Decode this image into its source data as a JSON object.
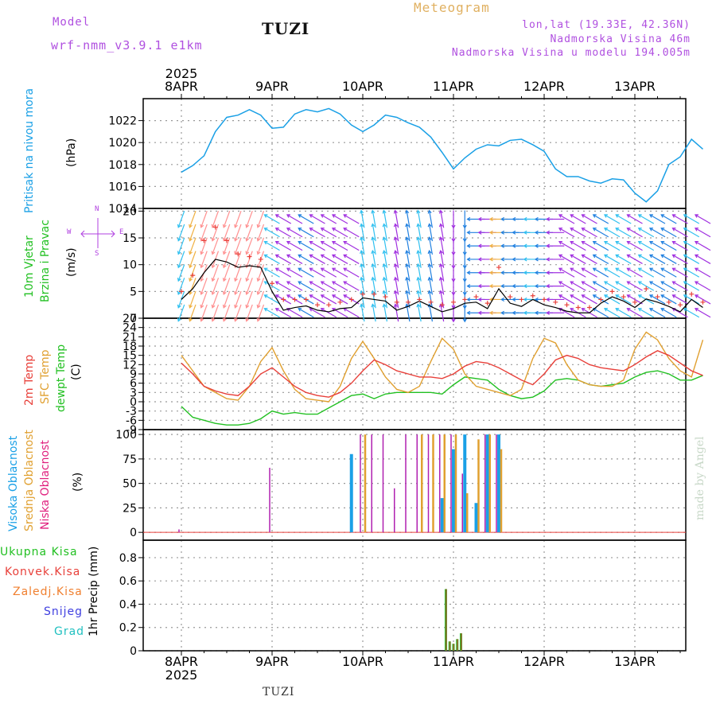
{
  "header": {
    "model_label": "Model",
    "model_name": "wrf-nmm_v3.9.1 e1km",
    "station": "TUZI",
    "product": "Meteogram",
    "coords": "lon,lat (19.33E, 42.36N)",
    "altitude": "Nadmorska Visina 46m",
    "model_altitude": "Nadmorska Visina u modelu 194.005m"
  },
  "colors": {
    "pressure": "#1aa0e6",
    "temp2m": "#e8403a",
    "sfc": "#e0a030",
    "dew": "#22c022",
    "high": "#1aa0e6",
    "mid": "#e0a030",
    "low": "#b020b0",
    "precip_total": "#22c022",
    "precip_conv": "#e8403a",
    "precip_frz": "#f08030",
    "snow": "#4040e0",
    "grad": "#20c0c0",
    "wind_label": "#22c022",
    "wind_rose": "#b040e0"
  },
  "time_axis": {
    "year": "2025",
    "days": [
      "8APR",
      "9APR",
      "10APR",
      "11APR",
      "12APR",
      "13APR"
    ]
  },
  "panels": {
    "pressure": {
      "label": "Pritisak na nivou mora",
      "unit": "(hPa)",
      "ticks": [
        "1014",
        "1016",
        "1018",
        "1020",
        "1022"
      ]
    },
    "wind": {
      "label1": "10m Vjetar",
      "label2": "Brzina i Pravac",
      "unit": "(m/s)",
      "ticks": [
        "0",
        "5",
        "10",
        "15",
        "20"
      ],
      "rose_n": "N",
      "rose_w": "W",
      "rose_e": "E",
      "rose_s": "S"
    },
    "temp": {
      "label1": "2m Temp",
      "label2": "SFC Temp",
      "label3": "dewpt Temp",
      "unit": "(C)",
      "ticks": [
        "-9",
        "-6",
        "-3",
        "0",
        "3",
        "6",
        "9",
        "12",
        "15",
        "18",
        "21",
        "24",
        "27"
      ]
    },
    "cloud": {
      "label1": "Visoka Oblacnost",
      "label2": "Srednja Oblacnost",
      "label3": "Niska Oblacnost",
      "unit": "(%)",
      "ticks": [
        "0",
        "25",
        "50",
        "75",
        "100"
      ]
    },
    "precip": {
      "legend": [
        "Ukupna Kisa",
        "Konvek.Kisa",
        "Zaledj.Kisa",
        "Snijeg",
        "Grad"
      ],
      "unit": "1hr Precip (mm)",
      "ticks": [
        "0",
        "0.2",
        "0.4",
        "0.6",
        "0.8"
      ]
    }
  },
  "footer": {
    "station": "TUZI",
    "watermark": "made by Angel"
  },
  "chart_data": [
    {
      "type": "line",
      "title": "Pritisak na nivou mora",
      "ylabel": "(hPa)",
      "ylim": [
        1014,
        1024
      ],
      "x": [
        0,
        3,
        6,
        9,
        12,
        15,
        18,
        21,
        24,
        27,
        30,
        33,
        36,
        39,
        42,
        45,
        48,
        51,
        54,
        57,
        60,
        63,
        66,
        69,
        72,
        75,
        78,
        81,
        84,
        87,
        90,
        93,
        96,
        99,
        102,
        105,
        108,
        111,
        114,
        117,
        120,
        123,
        126,
        129,
        132,
        135,
        138
      ],
      "series": [
        {
          "values": [
            1017.3,
            1017.9,
            1018.8,
            1021.0,
            1022.3,
            1022.5,
            1023.0,
            1022.5,
            1021.3,
            1021.4,
            1022.6,
            1023.0,
            1022.8,
            1023.1,
            1022.6,
            1021.6,
            1021.0,
            1021.6,
            1022.5,
            1022.3,
            1021.8,
            1021.4,
            1020.5,
            1019.1,
            1017.6,
            1018.6,
            1019.4,
            1019.8,
            1019.7,
            1020.2,
            1020.3,
            1019.8,
            1019.2,
            1017.6,
            1016.9,
            1016.9,
            1016.5,
            1016.3,
            1016.7,
            1016.6,
            1015.4,
            1014.6,
            1015.6,
            1018.0,
            1018.7,
            1020.3,
            1019.4
          ]
        }
      ]
    },
    {
      "type": "line",
      "title": "10m Vjetar Brzina i Pravac",
      "ylabel": "(m/s)",
      "ylim": [
        0,
        20
      ],
      "x": [
        0,
        3,
        6,
        9,
        12,
        15,
        18,
        21,
        24,
        27,
        30,
        33,
        36,
        39,
        42,
        45,
        48,
        51,
        54,
        57,
        60,
        63,
        66,
        69,
        72,
        75,
        78,
        81,
        84,
        87,
        90,
        93,
        96,
        99,
        102,
        105,
        108,
        111,
        114,
        117,
        120,
        123,
        126,
        129,
        132,
        135,
        138
      ],
      "series": [
        {
          "values": [
            3.5,
            5.5,
            8.5,
            11.0,
            10.5,
            9.5,
            9.8,
            9.5,
            5.0,
            1.5,
            2.0,
            2.3,
            1.5,
            1.2,
            1.8,
            2.0,
            3.8,
            3.5,
            3.2,
            1.5,
            2.2,
            3.2,
            2.2,
            1.2,
            1.8,
            2.8,
            3.0,
            1.8,
            5.5,
            2.8,
            2.2,
            3.5,
            2.5,
            2.0,
            1.3,
            1.0,
            1.0,
            2.8,
            4.0,
            3.2,
            2.0,
            3.6,
            3.0,
            2.2,
            1.2,
            3.5,
            2.0
          ]
        },
        {
          "values": [
            5.0,
            8.0,
            14.5,
            17.0,
            14.5,
            12.0,
            11.5,
            11.0,
            6.5,
            3.5,
            3.5,
            3.5,
            2.5,
            2.5,
            3.0,
            3.5,
            4.5,
            4.5,
            4.0,
            3.0,
            3.0,
            3.5,
            3.0,
            2.5,
            3.0,
            3.5,
            4.0,
            2.8,
            9.5,
            4.0,
            3.5,
            4.2,
            3.5,
            3.0,
            2.5,
            2.0,
            2.0,
            3.5,
            5.0,
            4.0,
            3.0,
            5.5,
            4.0,
            3.0,
            2.5,
            4.5,
            3.0
          ]
        }
      ]
    },
    {
      "type": "line",
      "title": "2m Temp / SFC Temp / dewpt Temp",
      "ylabel": "(C)",
      "ylim": [
        -9,
        27
      ],
      "x": [
        0,
        3,
        6,
        9,
        12,
        15,
        18,
        21,
        24,
        27,
        30,
        33,
        36,
        39,
        42,
        45,
        48,
        51,
        54,
        57,
        60,
        63,
        66,
        69,
        72,
        75,
        78,
        81,
        84,
        87,
        90,
        93,
        96,
        99,
        102,
        105,
        108,
        111,
        114,
        117,
        120,
        123,
        126,
        129,
        132,
        135,
        138
      ],
      "series": [
        {
          "name": "2m Temp",
          "values": [
            12.5,
            9,
            5,
            3.5,
            2.5,
            2,
            5,
            9,
            11,
            8,
            5,
            3,
            2,
            1.5,
            3,
            6,
            10,
            13.5,
            12,
            10,
            9,
            8,
            8,
            7.5,
            9,
            11.5,
            13,
            12.5,
            11,
            9,
            7,
            5.5,
            9,
            13.5,
            15,
            14,
            12,
            11,
            10.5,
            10,
            12,
            14.5,
            16.5,
            15,
            12.5,
            10,
            8.5
          ]
        },
        {
          "name": "SFC Temp",
          "values": [
            15,
            10,
            5,
            3,
            1,
            0.5,
            5,
            13,
            17.5,
            10,
            4,
            1,
            0.5,
            0,
            5,
            14,
            19.5,
            14,
            8,
            4,
            3,
            5,
            13,
            20.5,
            17,
            9,
            5,
            4,
            3,
            2,
            4,
            14,
            20.5,
            19,
            12,
            7,
            5.5,
            5,
            5,
            7,
            17,
            22.5,
            20,
            14,
            10,
            8,
            20
          ]
        },
        {
          "name": "dewpt Temp",
          "values": [
            -1.5,
            -5,
            -6,
            -7,
            -7.5,
            -7.5,
            -7,
            -5.5,
            -3,
            -4,
            -3.5,
            -4,
            -4,
            -2,
            0,
            2,
            2.5,
            1,
            2.5,
            3,
            3,
            3,
            3,
            2.5,
            5.5,
            8,
            7.5,
            7,
            4,
            2,
            1,
            1.5,
            3.5,
            7,
            7.5,
            7,
            5.5,
            5,
            5.5,
            6,
            8,
            9.5,
            10,
            9,
            7,
            7,
            8.5
          ]
        }
      ]
    },
    {
      "type": "bar",
      "title": "Visoka / Srednja / Niska Oblacnost",
      "ylabel": "(%)",
      "ylim": [
        0,
        100
      ],
      "x": [
        0,
        3,
        6,
        9,
        12,
        15,
        18,
        21,
        24,
        27,
        30,
        33,
        36,
        39,
        42,
        45,
        48,
        51,
        54,
        57,
        60,
        63,
        66,
        69,
        72,
        75,
        78,
        81,
        84,
        87,
        90,
        93,
        96,
        99,
        102,
        105,
        108,
        111,
        114,
        117,
        120,
        123,
        126,
        129,
        132,
        135,
        138
      ],
      "series": [
        {
          "name": "Visoka Oblacnost",
          "values": [
            0,
            0,
            0,
            0,
            0,
            0,
            0,
            0,
            0,
            0,
            0,
            0,
            0,
            0,
            0,
            80,
            0,
            0,
            0,
            0,
            0,
            0,
            0,
            35,
            85,
            100,
            30,
            100,
            100,
            0,
            0,
            0,
            0,
            0,
            0,
            0,
            0,
            0,
            0,
            0,
            0,
            0,
            0,
            0,
            0,
            0,
            0
          ]
        },
        {
          "name": "Srednja Oblacnost",
          "values": [
            0,
            0,
            0,
            0,
            0,
            0,
            0,
            0,
            0,
            0,
            0,
            0,
            0,
            0,
            0,
            0,
            100,
            0,
            0,
            0,
            0,
            100,
            100,
            100,
            100,
            40,
            95,
            100,
            85,
            0,
            0,
            0,
            0,
            0,
            0,
            0,
            0,
            0,
            0,
            0,
            0,
            0,
            0,
            0,
            0,
            0,
            0
          ]
        },
        {
          "name": "Niska Oblacnost",
          "values": [
            3,
            0,
            0,
            0,
            0,
            0,
            0,
            0,
            66,
            0,
            0,
            0,
            0,
            0,
            0,
            0,
            100,
            100,
            100,
            45,
            100,
            100,
            100,
            100,
            100,
            60,
            0,
            100,
            100,
            0,
            0,
            0,
            0,
            0,
            0,
            0,
            0,
            0,
            0,
            0,
            0,
            0,
            0,
            0,
            0,
            0,
            0
          ]
        }
      ]
    },
    {
      "type": "bar",
      "title": "1hr Precip",
      "ylabel": "1hr Precip (mm)",
      "ylim": [
        0,
        0.9
      ],
      "x": [
        70,
        71,
        72,
        73,
        74
      ],
      "series": [
        {
          "name": "Ukupna Kisa",
          "values": [
            0.53,
            0.08,
            0.06,
            0.1,
            0.15
          ]
        },
        {
          "name": "Konvek.Kisa",
          "values": [
            0.53,
            0.08,
            0.06,
            0.1,
            0.15
          ]
        }
      ]
    }
  ]
}
